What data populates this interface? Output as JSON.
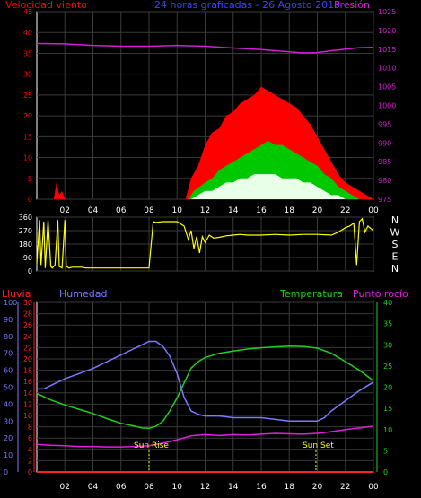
{
  "colors": {
    "background": "#000000",
    "frame": "#ffffff",
    "grid": "#3a3a3a",
    "wind_avg": "#00c800",
    "wind_gust": "#ff0000",
    "wind_low": "#e8ffe8",
    "pressure": "#d020d0",
    "direction": "#ffff00",
    "rain": "#ff2020",
    "humidity": "#7a7aff",
    "temperature": "#20d020",
    "dewpoint": "#e020e0",
    "sun_labels": "#ffff00"
  },
  "chart_data": [
    {
      "id": "wind",
      "type": "area",
      "title": "24 horas graficadas - 26 Agosto 2015",
      "left_axis_label": "Velocidad viento",
      "right_axis_label": "Presión",
      "x_ticks": [
        "02",
        "04",
        "06",
        "08",
        "10",
        "12",
        "14",
        "16",
        "18",
        "20",
        "22",
        "00"
      ],
      "x_range": [
        0,
        24
      ],
      "y_left": {
        "range": [
          0,
          45
        ],
        "ticks": [
          "0",
          "5",
          "10",
          "15",
          "20",
          "25",
          "30",
          "35",
          "40",
          "45"
        ]
      },
      "y_right": {
        "range": [
          975,
          1025
        ],
        "ticks": [
          "975",
          "980",
          "985",
          "990",
          "995",
          "1000",
          "1005",
          "1010",
          "1015",
          "1020",
          "1025"
        ]
      },
      "series": {
        "gust": {
          "x": [
            0,
            1.2,
            1.4,
            1.6,
            1.8,
            2.0,
            10.6,
            11.0,
            11.5,
            12.0,
            12.5,
            13.0,
            13.5,
            14.0,
            14.5,
            15.0,
            15.5,
            16.0,
            16.5,
            17.0,
            17.5,
            18.0,
            18.5,
            19.0,
            19.5,
            20.0,
            20.5,
            21.0,
            21.5,
            22.0,
            22.5,
            23.0,
            23.5,
            24.0
          ],
          "y": [
            0,
            0,
            4,
            1,
            2,
            0,
            0,
            5,
            8,
            13,
            16,
            17,
            20,
            21,
            23,
            24,
            25,
            27,
            26,
            25,
            24,
            23,
            22,
            20,
            18,
            15,
            12,
            9,
            6,
            4,
            3,
            2,
            1,
            0
          ]
        },
        "avg": {
          "x": [
            0,
            10.8,
            11.2,
            11.6,
            12.0,
            12.5,
            13.0,
            13.5,
            14.0,
            14.5,
            15.0,
            15.5,
            16.0,
            16.5,
            17.0,
            17.5,
            18.0,
            18.5,
            19.0,
            19.5,
            20.0,
            20.5,
            21.0,
            21.5,
            22.0,
            22.5,
            23.0,
            24.0
          ],
          "y": [
            0,
            0,
            2,
            3,
            4,
            5,
            7,
            8,
            9,
            10,
            11,
            12,
            13,
            14,
            13,
            13,
            12,
            11,
            10,
            9,
            8,
            6,
            5,
            3,
            2,
            1,
            0,
            0
          ]
        },
        "low": {
          "x": [
            0,
            11.0,
            11.5,
            12.0,
            12.5,
            13.0,
            13.5,
            14.0,
            14.5,
            15.0,
            15.5,
            16.0,
            16.5,
            17.0,
            17.5,
            18.0,
            18.5,
            19.0,
            19.5,
            20.0,
            20.5,
            21.0,
            21.5,
            22.0,
            24.0
          ],
          "y": [
            0,
            0,
            1,
            2,
            2,
            3,
            4,
            4,
            5,
            5,
            6,
            6,
            6,
            6,
            5,
            5,
            5,
            4,
            4,
            3,
            2,
            1,
            1,
            0,
            0
          ]
        },
        "pressure": {
          "x": [
            0,
            2,
            4,
            6,
            8,
            10,
            12,
            14,
            16,
            18,
            19,
            20,
            21,
            22,
            23,
            24
          ],
          "y": [
            1016.5,
            1016.4,
            1016.0,
            1015.8,
            1015.8,
            1016.0,
            1015.8,
            1015.3,
            1014.9,
            1014.3,
            1014.0,
            1014.1,
            1014.6,
            1015.0,
            1015.4,
            1015.5
          ]
        }
      }
    },
    {
      "id": "direction",
      "type": "line",
      "y_ticks": [
        "0",
        "90",
        "180",
        "270",
        "360"
      ],
      "y_range": [
        0,
        360
      ],
      "right_labels": [
        "N",
        "W",
        "S",
        "E",
        "N"
      ],
      "series": {
        "direction": {
          "x": [
            0,
            0.2,
            0.3,
            0.5,
            0.6,
            0.8,
            1.0,
            1.1,
            1.3,
            1.5,
            1.6,
            1.8,
            2.0,
            2.1,
            2.3,
            2.5,
            3.2,
            3.5,
            4.0,
            6.0,
            8.0,
            8.3,
            8.5,
            9.0,
            10.0,
            10.5,
            10.8,
            11.0,
            11.2,
            11.4,
            11.6,
            11.8,
            12.0,
            12.3,
            12.6,
            13.0,
            13.5,
            14.0,
            14.5,
            15.0,
            16.0,
            17.0,
            18.0,
            19.0,
            20.0,
            21.0,
            21.5,
            22.0,
            22.3,
            22.6,
            22.8,
            23.0,
            23.2,
            23.4,
            23.6,
            24.0
          ],
          "y": [
            50,
            340,
            40,
            330,
            20,
            340,
            30,
            20,
            40,
            340,
            30,
            20,
            340,
            30,
            20,
            25,
            25,
            20,
            20,
            20,
            20,
            330,
            325,
            330,
            330,
            300,
            210,
            270,
            150,
            230,
            120,
            230,
            190,
            240,
            220,
            225,
            235,
            240,
            245,
            240,
            240,
            245,
            240,
            245,
            245,
            240,
            260,
            290,
            300,
            320,
            40,
            330,
            350,
            260,
            300,
            270
          ]
        }
      }
    },
    {
      "id": "climate",
      "type": "line",
      "labels": {
        "rain": "Lluvia",
        "humidity": "Humedad",
        "temperature": "Temperatura",
        "dewpoint": "Punto rocío",
        "sunrise": "Sun Rise",
        "sunset": "Sun Set"
      },
      "sunrise_x": 8.0,
      "sunset_x": 19.9,
      "y_humidity": {
        "range": [
          0,
          100
        ],
        "ticks": [
          "0",
          "10",
          "20",
          "30",
          "40",
          "50",
          "60",
          "70",
          "80",
          "90",
          "100"
        ]
      },
      "y_rain": {
        "range": [
          0,
          30
        ],
        "ticks": [
          "0",
          "2",
          "4",
          "6",
          "8",
          "10",
          "12",
          "14",
          "16",
          "18",
          "20",
          "22",
          "24",
          "26",
          "28",
          "30"
        ]
      },
      "y_temp": {
        "range": [
          0,
          40
        ],
        "ticks": [
          "0",
          "5",
          "10",
          "15",
          "20",
          "25",
          "30",
          "35",
          "40"
        ]
      },
      "series": {
        "humidity": {
          "x": [
            0,
            0.5,
            1,
            2,
            3,
            4,
            5,
            6,
            7,
            7.5,
            8,
            8.5,
            9,
            9.5,
            10,
            10.5,
            11,
            11.5,
            12,
            13,
            14,
            15,
            16,
            17,
            18,
            19,
            20,
            20.5,
            21,
            22,
            23,
            24
          ],
          "y": [
            49,
            49,
            51,
            55,
            58,
            61,
            65,
            69,
            73,
            75,
            77,
            77,
            74,
            68,
            58,
            44,
            36,
            34,
            33,
            33,
            32,
            32,
            32,
            31,
            30,
            30,
            30,
            32,
            36,
            42,
            48,
            53
          ]
        },
        "temperature": {
          "x": [
            0,
            1,
            2,
            3,
            4,
            5,
            6,
            7,
            7.5,
            8,
            8.5,
            9,
            9.5,
            10,
            10.5,
            11,
            11.5,
            12,
            13,
            14,
            15,
            16,
            17,
            18,
            19,
            20,
            21,
            22,
            23,
            24
          ],
          "y": [
            18.5,
            17.0,
            15.8,
            14.8,
            13.8,
            12.6,
            11.5,
            10.8,
            10.4,
            10.3,
            10.8,
            12.0,
            14.5,
            17.5,
            21.0,
            24.5,
            26.0,
            27.0,
            28.0,
            28.5,
            29.0,
            29.3,
            29.5,
            29.7,
            29.6,
            29.2,
            28.0,
            26.0,
            24.0,
            21.5
          ]
        },
        "dewpoint": {
          "x": [
            0,
            1,
            2,
            3,
            4,
            5,
            6,
            7,
            8,
            9,
            10,
            11,
            12,
            13,
            14,
            15,
            16,
            17,
            18,
            19,
            20,
            21,
            22,
            23,
            24
          ],
          "y": [
            6.5,
            6.3,
            6.2,
            6.0,
            6.0,
            5.9,
            5.9,
            6.0,
            6.2,
            6.8,
            7.6,
            8.5,
            8.8,
            8.6,
            8.8,
            8.7,
            8.9,
            9.1,
            9.0,
            8.9,
            9.1,
            9.5,
            10.0,
            10.4,
            10.8
          ]
        },
        "rain": {
          "x": [
            0,
            24
          ],
          "y": [
            0,
            0
          ]
        }
      }
    }
  ]
}
